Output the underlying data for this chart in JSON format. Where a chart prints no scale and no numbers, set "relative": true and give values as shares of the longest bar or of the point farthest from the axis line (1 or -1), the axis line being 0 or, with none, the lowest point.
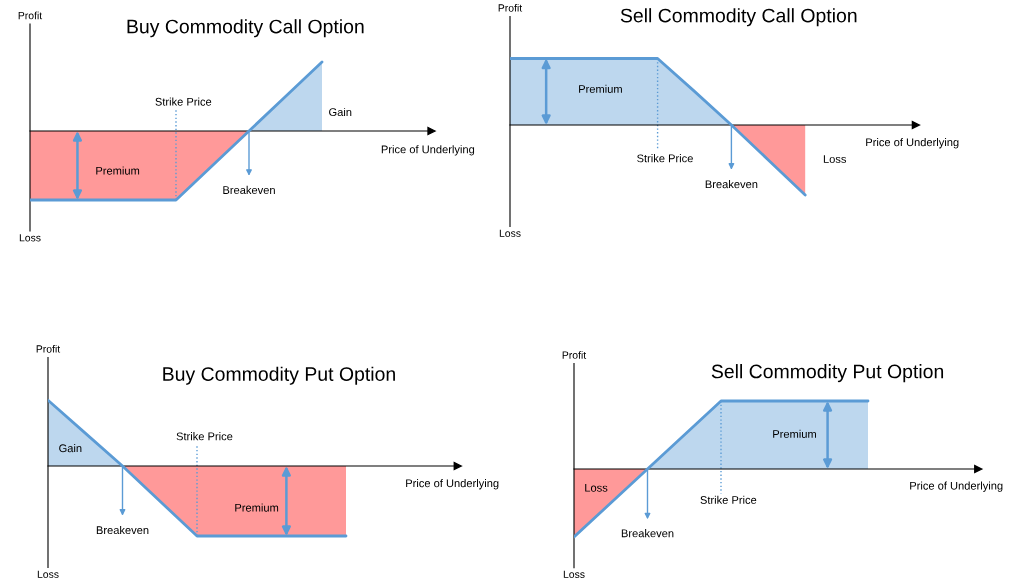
{
  "chart_data": [
    {
      "type": "line",
      "title": "Buy Commodity Call Option",
      "xlabel": "Price of Underlying",
      "relative": true,
      "categories": [
        null,
        null,
        null,
        null,
        null,
        null,
        null,
        null,
        null
      ],
      "series": [
        {
          "type": "area",
          "color": "#bdd7ee",
          "values": [
            null,
            null,
            null,
            null,
            null,
            null,
            0,
            0.5,
            1
          ]
        },
        {
          "type": "area",
          "color": "#ff9999",
          "values": [
            -1,
            -1,
            -1,
            -1,
            -1,
            -0.5,
            0,
            null,
            null
          ]
        },
        {
          "color": "#5b9bd5",
          "values": [
            -1,
            -1,
            -1,
            -1,
            -1,
            -0.5,
            0,
            0.5,
            1
          ]
        }
      ],
      "annotations": [
        "Profit",
        "Loss",
        "Premium",
        "Gain",
        "Breakeven",
        "Strike Price"
      ]
    },
    {
      "type": "line",
      "title": "Sell Commodity Call Option",
      "xlabel": "Price of Underlying",
      "relative": true,
      "categories": [
        null,
        null,
        null,
        null,
        null,
        null,
        null,
        null,
        null
      ],
      "series": [
        {
          "type": "area",
          "color": "#bdd7ee",
          "values": [
            0.95,
            0.95,
            0.95,
            0.95,
            0.95,
            0.48,
            0,
            null,
            null
          ]
        },
        {
          "type": "area",
          "color": "#ff9999",
          "values": [
            null,
            null,
            null,
            null,
            null,
            null,
            0,
            -0.5,
            -1
          ]
        },
        {
          "color": "#5b9bd5",
          "values": [
            0.95,
            0.95,
            0.95,
            0.95,
            0.95,
            0.48,
            0,
            -0.5,
            -1
          ]
        }
      ],
      "annotations": [
        "Profit",
        "Loss",
        "Premium",
        "Loss",
        "Breakeven",
        "Strike Price"
      ]
    },
    {
      "type": "line",
      "title": "Buy Commodity Put Option",
      "xlabel": "Price of Underlying",
      "relative": true,
      "categories": [
        null,
        null,
        null,
        null,
        null,
        null,
        null,
        null,
        null
      ],
      "series": [
        {
          "type": "area",
          "color": "#bdd7ee",
          "values": [
            0.94,
            0.47,
            0,
            null,
            null,
            null,
            null,
            null,
            null
          ]
        },
        {
          "type": "area",
          "color": "#ff9999",
          "values": [
            null,
            null,
            0,
            -0.5,
            -1,
            -1,
            -1,
            -1,
            -1
          ]
        },
        {
          "color": "#5b9bd5",
          "values": [
            0.94,
            0.47,
            0,
            -0.5,
            -1,
            -1,
            -1,
            -1,
            -1
          ]
        }
      ],
      "annotations": [
        "Profit",
        "Loss",
        "Premium",
        "Gain",
        "Breakeven",
        "Strike Price"
      ]
    },
    {
      "type": "line",
      "title": "Sell Commodity Put Option",
      "xlabel": "Price of Underlying",
      "relative": true,
      "categories": [
        null,
        null,
        null,
        null,
        null,
        null,
        null,
        null,
        null
      ],
      "series": [
        {
          "type": "area",
          "color": "#bdd7ee",
          "values": [
            null,
            null,
            0,
            0.5,
            1,
            1,
            1,
            1,
            1
          ]
        },
        {
          "type": "area",
          "color": "#ff9999",
          "values": [
            -1,
            -0.5,
            0,
            null,
            null,
            null,
            null,
            null,
            null
          ]
        },
        {
          "color": "#5b9bd5",
          "values": [
            -1,
            -0.5,
            0,
            0.5,
            1,
            1,
            1,
            1,
            1
          ]
        }
      ],
      "annotations": [
        "Profit",
        "Loss",
        "Premium",
        "Loss",
        "Breakeven",
        "Strike Price"
      ]
    }
  ]
}
